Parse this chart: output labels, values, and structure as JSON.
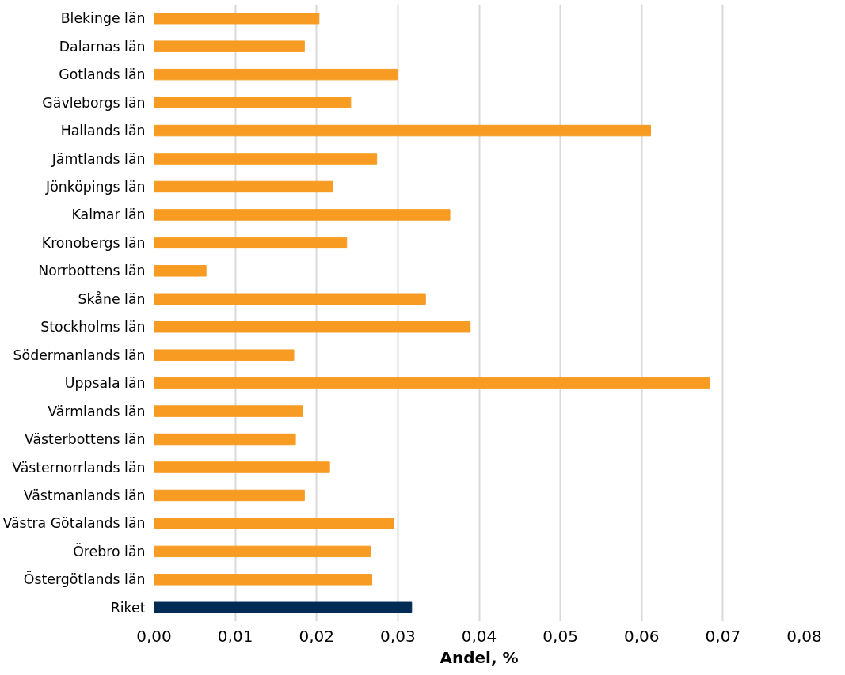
{
  "chart_data": {
    "type": "bar",
    "orientation": "horizontal",
    "xlabel": "Andel, %",
    "categories": [
      "Blekinge län",
      "Dalarnas län",
      "Gotlands län",
      "Gävleborgs län",
      "Hallands län",
      "Jämtlands län",
      "Jönköpings län",
      "Kalmar län",
      "Kronobergs län",
      "Norrbottens län",
      "Skåne län",
      "Stockholms län",
      "Södermanlands län",
      "Uppsala län",
      "Värmlands län",
      "Västerbottens län",
      "Västernorrlands län",
      "Västmanlands län",
      "Västra Götalands län",
      "Örebro län",
      "Östergötlands län",
      "Riket"
    ],
    "values": [
      0.0203,
      0.0185,
      0.0299,
      0.0242,
      0.0611,
      0.0274,
      0.022,
      0.0364,
      0.0237,
      0.0064,
      0.0334,
      0.0389,
      0.0172,
      0.0684,
      0.0183,
      0.0174,
      0.0216,
      0.0185,
      0.0295,
      0.0266,
      0.0268,
      0.0317
    ],
    "colors": [
      "#f79b22",
      "#f79b22",
      "#f79b22",
      "#f79b22",
      "#f79b22",
      "#f79b22",
      "#f79b22",
      "#f79b22",
      "#f79b22",
      "#f79b22",
      "#f79b22",
      "#f79b22",
      "#f79b22",
      "#f79b22",
      "#f79b22",
      "#f79b22",
      "#f79b22",
      "#f79b22",
      "#f79b22",
      "#f79b22",
      "#f79b22",
      "#002b55"
    ],
    "xlim": [
      0,
      0.08
    ],
    "xticks": [
      {
        "value": 0,
        "label": "0,00"
      },
      {
        "value": 0.01,
        "label": "0,01"
      },
      {
        "value": 0.02,
        "label": "0,02"
      },
      {
        "value": 0.03,
        "label": "0,03"
      },
      {
        "value": 0.04,
        "label": "0,04"
      },
      {
        "value": 0.05,
        "label": "0,05"
      },
      {
        "value": 0.06,
        "label": "0,06"
      },
      {
        "value": 0.07,
        "label": "0,07"
      },
      {
        "value": 0.08,
        "label": "0,08"
      }
    ],
    "grid": "x"
  }
}
